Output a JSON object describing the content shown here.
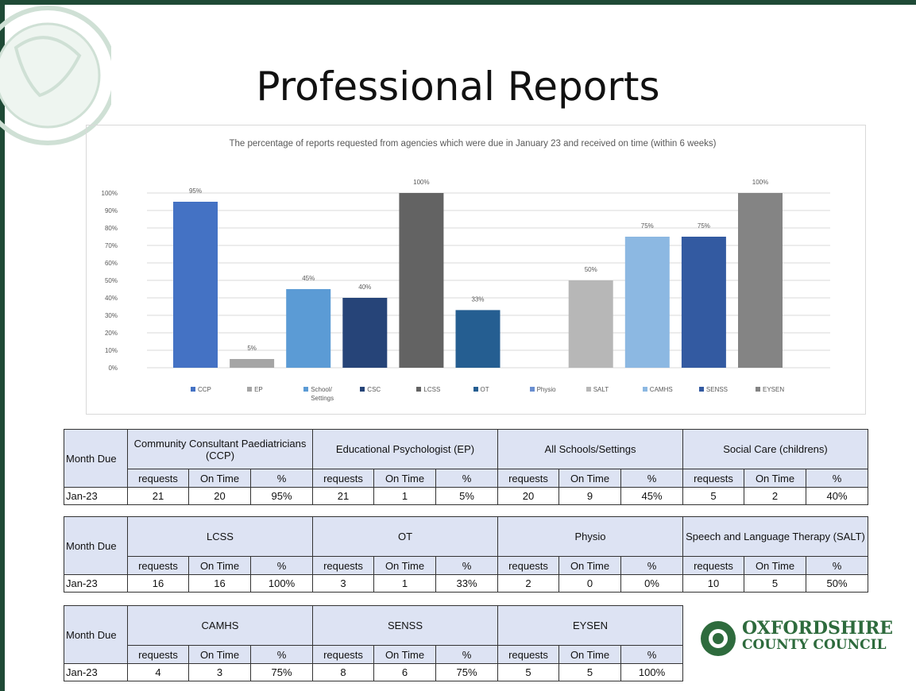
{
  "title": "Professional Reports",
  "chart_data": {
    "type": "bar",
    "title": "The percentage of reports requested from agencies which were due in January 23 and received on time (within 6 weeks)",
    "categories": [
      "CCP",
      "EP",
      "School/ Settings",
      "CSC",
      "LCSS",
      "OT",
      "Physio",
      "SALT",
      "CAMHS",
      "SENSS",
      "EYSEN"
    ],
    "values": [
      95,
      5,
      45,
      40,
      100,
      33,
      null,
      50,
      75,
      75,
      100
    ],
    "value_labels": [
      "95%",
      "5%",
      "45%",
      "40%",
      "100%",
      "33%",
      null,
      "50%",
      "75%",
      "75%",
      "100%"
    ],
    "colors": [
      "#4472c4",
      "#a5a5a5",
      "#5b9bd5",
      "#264478",
      "#636363",
      "#255e91",
      "#698ed0",
      "#b7b7b7",
      "#8cb8e2",
      "#335aa1",
      "#848484"
    ],
    "ylim": [
      0,
      100
    ],
    "yticks": [
      {
        "value": 0,
        "label": "0%"
      },
      {
        "value": 10,
        "label": "10%"
      },
      {
        "value": 20,
        "label": "20%"
      },
      {
        "value": 30,
        "label": "30%"
      },
      {
        "value": 40,
        "label": "40%"
      },
      {
        "value": 50,
        "label": "50%"
      },
      {
        "value": 60,
        "label": "60%"
      },
      {
        "value": 70,
        "label": "70%"
      },
      {
        "value": 80,
        "label": "80%"
      },
      {
        "value": 90,
        "label": "90%"
      },
      {
        "value": 100,
        "label": "100%"
      }
    ],
    "grid": true,
    "legend": "bottom"
  },
  "tables": [
    {
      "month_header": "Month Due",
      "row_label": "Jan-23",
      "groups": [
        {
          "name": "Community Consultant Paediatricians (CCP)",
          "columns": [
            "requests",
            "On Time",
            "%"
          ],
          "row": [
            "21",
            "20",
            "95%"
          ]
        },
        {
          "name": "Educational Psychologist (EP)",
          "columns": [
            "requests",
            "On Time",
            "%"
          ],
          "row": [
            "21",
            "1",
            "5%"
          ]
        },
        {
          "name": "All Schools/Settings",
          "columns": [
            "requests",
            "On Time",
            "%"
          ],
          "row": [
            "20",
            "9",
            "45%"
          ]
        },
        {
          "name": "Social Care (childrens)",
          "columns": [
            "requests",
            "On Time",
            "%"
          ],
          "row": [
            "5",
            "2",
            "40%"
          ]
        }
      ]
    },
    {
      "month_header": "Month Due",
      "row_label": "Jan-23",
      "groups": [
        {
          "name": "LCSS",
          "columns": [
            "requests",
            "On Time",
            "%"
          ],
          "row": [
            "16",
            "16",
            "100%"
          ]
        },
        {
          "name": "OT",
          "columns": [
            "requests",
            "On Time",
            "%"
          ],
          "row": [
            "3",
            "1",
            "33%"
          ]
        },
        {
          "name": "Physio",
          "columns": [
            "requests",
            "On Time",
            "%"
          ],
          "row": [
            "2",
            "0",
            "0%"
          ]
        },
        {
          "name": "Speech and Language Therapy (SALT)",
          "columns": [
            "requests",
            "On Time",
            "%"
          ],
          "row": [
            "10",
            "5",
            "50%"
          ]
        }
      ]
    },
    {
      "month_header": "Month Due",
      "row_label": "Jan-23",
      "groups": [
        {
          "name": "CAMHS",
          "columns": [
            "requests",
            "On Time",
            "%"
          ],
          "row": [
            "4",
            "3",
            "75%"
          ]
        },
        {
          "name": "SENSS",
          "columns": [
            "requests",
            "On Time",
            "%"
          ],
          "row": [
            "8",
            "6",
            "75%"
          ]
        },
        {
          "name": "EYSEN",
          "columns": [
            "requests",
            "On Time",
            "%"
          ],
          "row": [
            "5",
            "5",
            "100%"
          ]
        }
      ]
    }
  ],
  "logo": {
    "lines": [
      "OXFORDSHIRE",
      "COUNTY COUNCIL"
    ]
  }
}
